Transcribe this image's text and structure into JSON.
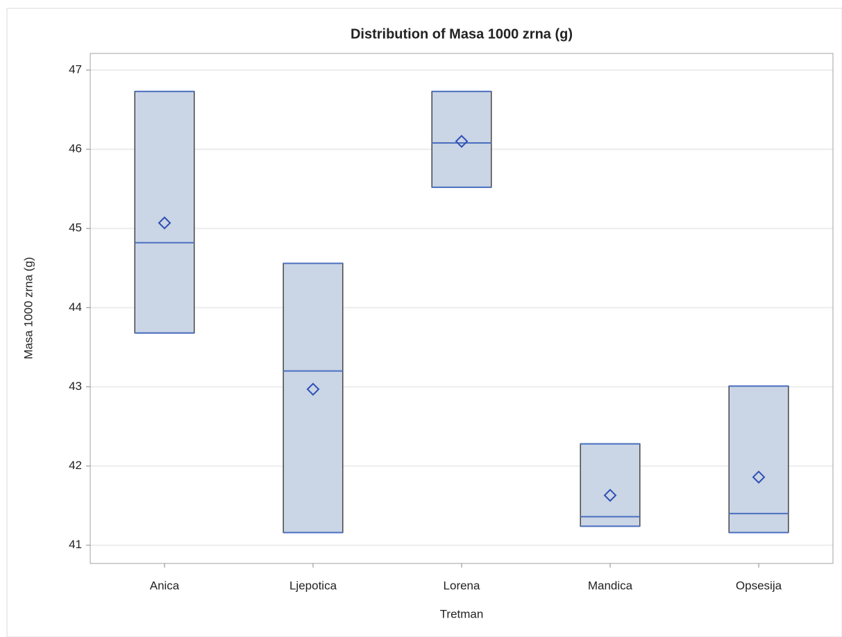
{
  "chart_data": {
    "type": "box",
    "title": "Distribution of Masa 1000 zrna (g)",
    "x_label": "Tretman",
    "y_label": "Masa 1000 zrna (g)",
    "categories": [
      "Anica",
      "Ljepotica",
      "Lorena",
      "Mandica",
      "Opsesija"
    ],
    "min": [
      43.68,
      41.16,
      45.52,
      41.24,
      41.16
    ],
    "q1": [
      43.68,
      41.16,
      45.52,
      41.24,
      41.16
    ],
    "median": [
      44.82,
      43.2,
      46.08,
      41.36,
      41.4
    ],
    "q3": [
      46.73,
      44.56,
      46.73,
      42.28,
      43.01
    ],
    "max": [
      46.73,
      44.56,
      46.73,
      42.28,
      43.01
    ],
    "mean": [
      45.07,
      42.97,
      46.1,
      41.63,
      41.86
    ],
    "ylim": [
      40.77,
      47.21
    ],
    "yticks": [
      41,
      42,
      43,
      44,
      45,
      46,
      47
    ],
    "grid": true,
    "box_color": "#cad5e5",
    "line_color": "#4a6fc0"
  }
}
